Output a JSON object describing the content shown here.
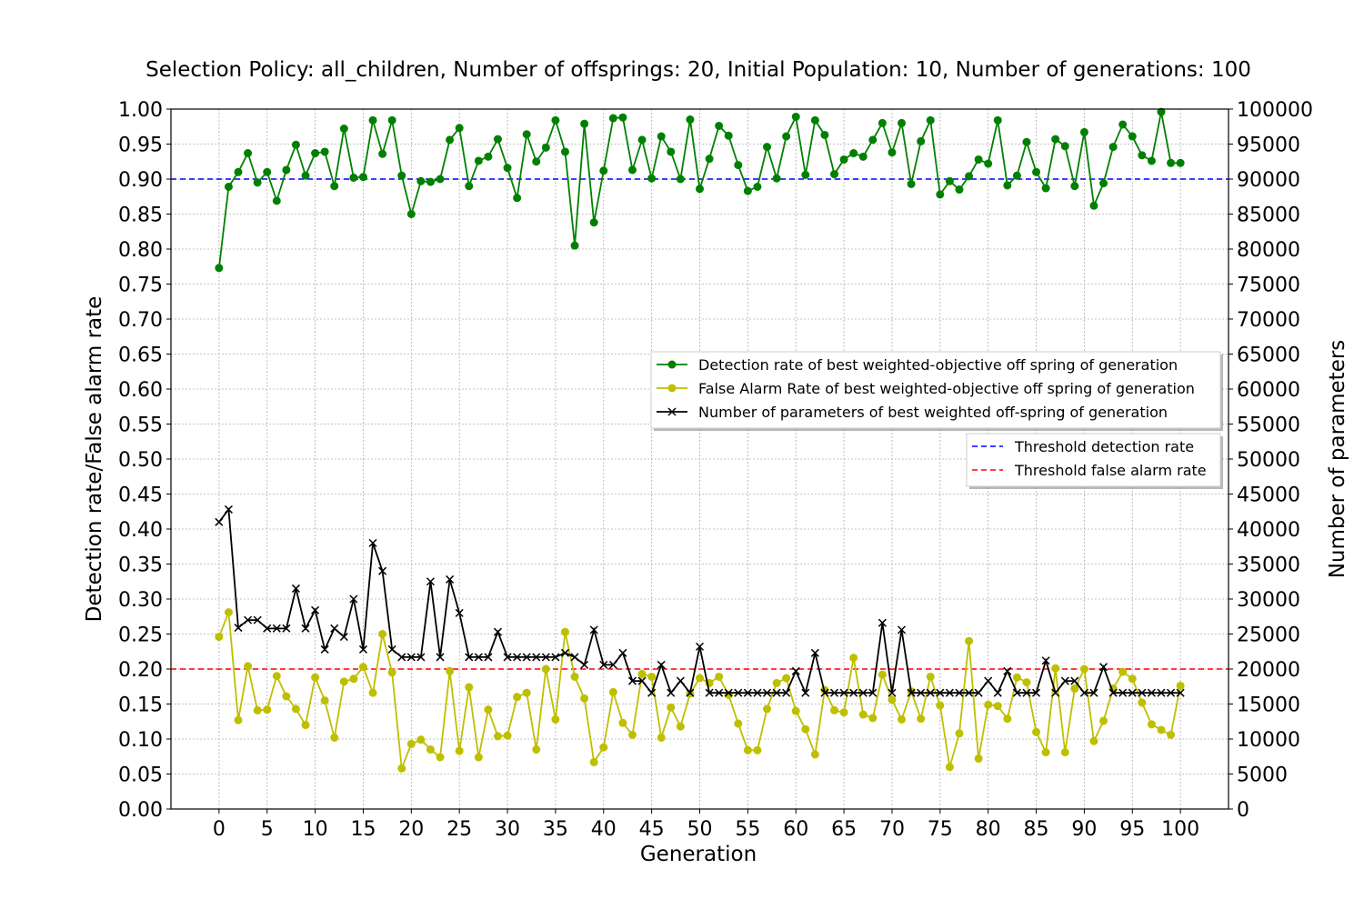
{
  "chart_data": {
    "type": "line",
    "title": "Selection Policy: all_children, Number of offsprings: 20, Initial Population: 10, Number of generations: 100",
    "xlabel": "Generation",
    "ylabel": "Detection rate/False alarm rate",
    "y2label": "Number of parameters",
    "xlim": [
      -5,
      105
    ],
    "ylim": [
      0,
      1
    ],
    "y2lim": [
      0,
      100000
    ],
    "xticks": [
      0,
      5,
      10,
      15,
      20,
      25,
      30,
      35,
      40,
      45,
      50,
      55,
      60,
      65,
      70,
      75,
      80,
      85,
      90,
      95,
      100
    ],
    "yticks": [
      "0.00",
      "0.05",
      "0.10",
      "0.15",
      "0.20",
      "0.25",
      "0.30",
      "0.35",
      "0.40",
      "0.45",
      "0.50",
      "0.55",
      "0.60",
      "0.65",
      "0.70",
      "0.75",
      "0.80",
      "0.85",
      "0.90",
      "0.95",
      "1.00"
    ],
    "y2ticks": [
      "0",
      "5000",
      "10000",
      "15000",
      "20000",
      "25000",
      "30000",
      "35000",
      "40000",
      "45000",
      "50000",
      "55000",
      "60000",
      "65000",
      "70000",
      "75000",
      "80000",
      "85000",
      "90000",
      "95000",
      "100000"
    ],
    "grid": true,
    "thresholds": [
      {
        "name": "Threshold detection rate",
        "value": 0.9,
        "color": "#0000ff",
        "style": "dashed"
      },
      {
        "name": "Threshold false alarm rate",
        "value": 0.2,
        "color": "#ff0000",
        "style": "dashed"
      }
    ],
    "series": [
      {
        "name": "Detection rate of best weighted-objective off spring of generation",
        "axis": "left",
        "color": "#008000",
        "marker": "circle",
        "values": [
          0.773,
          0.889,
          0.91,
          0.937,
          0.895,
          0.91,
          0.869,
          0.913,
          0.949,
          0.905,
          0.937,
          0.939,
          0.89,
          0.972,
          0.902,
          0.903,
          0.984,
          0.936,
          0.984,
          0.905,
          0.85,
          0.897,
          0.896,
          0.9,
          0.956,
          0.973,
          0.89,
          0.926,
          0.932,
          0.957,
          0.916,
          0.873,
          0.964,
          0.925,
          0.945,
          0.984,
          0.939,
          0.805,
          0.979,
          0.838,
          0.912,
          0.987,
          0.988,
          0.913,
          0.956,
          0.901,
          0.961,
          0.939,
          0.9,
          0.985,
          0.886,
          0.929,
          0.976,
          0.962,
          0.92,
          0.883,
          0.889,
          0.946,
          0.901,
          0.961,
          0.989,
          0.906,
          0.984,
          0.963,
          0.907,
          0.928,
          0.937,
          0.932,
          0.956,
          0.98,
          0.938,
          0.98,
          0.893,
          0.954,
          0.984,
          0.878,
          0.897,
          0.885,
          0.904,
          0.928,
          0.922,
          0.984,
          0.891,
          0.905,
          0.953,
          0.91,
          0.887,
          0.957,
          0.947,
          0.89,
          0.967,
          0.862,
          0.894,
          0.946,
          0.978,
          0.961,
          0.934,
          0.926,
          0.996,
          0.923,
          0.923
        ]
      },
      {
        "name": "False Alarm Rate of best weighted-objective off spring of generation",
        "axis": "left",
        "color": "#bfbf00",
        "marker": "circle",
        "values": [
          0.246,
          0.281,
          0.127,
          0.204,
          0.141,
          0.142,
          0.19,
          0.161,
          0.143,
          0.12,
          0.188,
          0.155,
          0.102,
          0.182,
          0.186,
          0.203,
          0.166,
          0.25,
          0.195,
          0.058,
          0.093,
          0.099,
          0.085,
          0.074,
          0.197,
          0.083,
          0.174,
          0.074,
          0.142,
          0.104,
          0.105,
          0.16,
          0.166,
          0.085,
          0.2,
          0.128,
          0.253,
          0.189,
          0.158,
          0.067,
          0.088,
          0.167,
          0.123,
          0.106,
          0.193,
          0.189,
          0.102,
          0.145,
          0.118,
          0.165,
          0.187,
          0.18,
          0.189,
          0.163,
          0.122,
          0.084,
          0.084,
          0.143,
          0.18,
          0.187,
          0.14,
          0.114,
          0.078,
          0.17,
          0.141,
          0.138,
          0.216,
          0.135,
          0.13,
          0.192,
          0.156,
          0.128,
          0.168,
          0.129,
          0.189,
          0.148,
          0.06,
          0.108,
          0.24,
          0.072,
          0.149,
          0.147,
          0.129,
          0.188,
          0.181,
          0.11,
          0.081,
          0.201,
          0.081,
          0.172,
          0.2,
          0.097,
          0.126,
          0.172,
          0.196,
          0.186,
          0.152,
          0.121,
          0.113,
          0.106,
          0.176
        ]
      },
      {
        "name": "Number of parameters of best weighted off-spring of generation",
        "axis": "right",
        "color": "#000000",
        "marker": "x",
        "values": [
          41000,
          42800,
          25900,
          27000,
          27000,
          25800,
          25800,
          25800,
          31500,
          25800,
          28400,
          22800,
          25800,
          24600,
          30000,
          22800,
          38000,
          34000,
          22800,
          21700,
          21700,
          21700,
          32500,
          21700,
          32800,
          28000,
          21700,
          21700,
          21700,
          25300,
          21700,
          21700,
          21700,
          21700,
          21700,
          21700,
          22300,
          21700,
          20600,
          25600,
          20600,
          20600,
          22300,
          18300,
          18300,
          16600,
          20600,
          16600,
          18300,
          16600,
          23200,
          16600,
          16600,
          16600,
          16600,
          16600,
          16600,
          16600,
          16600,
          16600,
          19700,
          16600,
          22300,
          16600,
          16600,
          16600,
          16600,
          16600,
          16600,
          26600,
          16600,
          25600,
          16600,
          16600,
          16600,
          16600,
          16600,
          16600,
          16600,
          16600,
          18300,
          16600,
          19700,
          16600,
          16600,
          16600,
          21200,
          16600,
          18300,
          18300,
          16600,
          16600,
          20300,
          16600,
          16600,
          16600,
          16600,
          16600,
          16600,
          16600,
          16600
        ]
      }
    ],
    "legend": {
      "placement": "center-right"
    },
    "legend2": {
      "placement": "right"
    }
  }
}
